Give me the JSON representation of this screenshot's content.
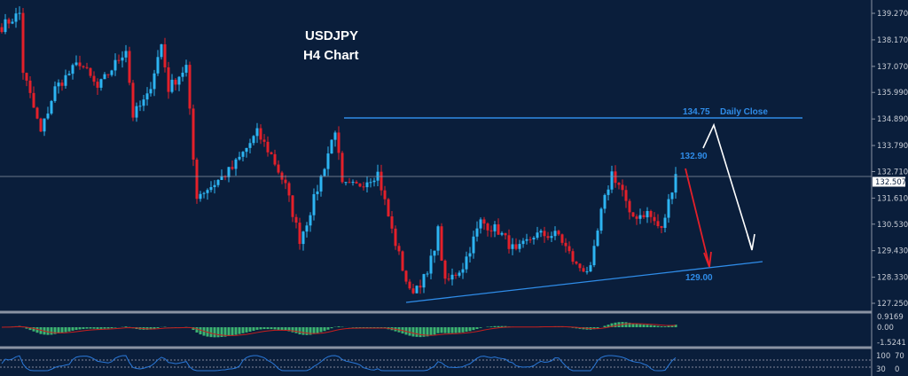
{
  "chart_data": {
    "type": "candlestick",
    "title": "USDJPY",
    "subtitle": "H4 Chart",
    "symbol": "USDJPY",
    "timeframe": "H4",
    "ylim": [
      127.25,
      139.27
    ],
    "y_ticks": [
      "139.270",
      "138.170",
      "137.070",
      "135.990",
      "134.890",
      "133.790",
      "132.710",
      "131.610",
      "130.530",
      "129.430",
      "128.330",
      "127.250"
    ],
    "current_price": "132.507",
    "price_path": [
      [
        0,
        138.72
      ],
      [
        5,
        139.27
      ],
      [
        6,
        136.88
      ],
      [
        11,
        134.31
      ],
      [
        15,
        136.15
      ],
      [
        22,
        137.25
      ],
      [
        27,
        136.15
      ],
      [
        35,
        137.8
      ],
      [
        37,
        135.04
      ],
      [
        41,
        135.78
      ],
      [
        45,
        137.98
      ],
      [
        47,
        136.15
      ],
      [
        52,
        137.06
      ],
      [
        54,
        133.2
      ],
      [
        55,
        131.73
      ],
      [
        59,
        132.1
      ],
      [
        65,
        132.84
      ],
      [
        72,
        134.31
      ],
      [
        76,
        133.39
      ],
      [
        80,
        132.1
      ],
      [
        84,
        129.9
      ],
      [
        86,
        130.63
      ],
      [
        90,
        132.47
      ],
      [
        94,
        134.49
      ],
      [
        96,
        132.1
      ],
      [
        100,
        132.1
      ],
      [
        106,
        132.65
      ],
      [
        110,
        130.26
      ],
      [
        115,
        127.69
      ],
      [
        120,
        128.42
      ],
      [
        123,
        130.26
      ],
      [
        125,
        128.06
      ],
      [
        130,
        128.79
      ],
      [
        135,
        130.63
      ],
      [
        140,
        130.26
      ],
      [
        145,
        129.34
      ],
      [
        150,
        130.08
      ],
      [
        157,
        130.08
      ],
      [
        162,
        128.79
      ],
      [
        166,
        128.61
      ],
      [
        169,
        131.0
      ],
      [
        172,
        132.65
      ],
      [
        175,
        131.92
      ],
      [
        177,
        130.82
      ],
      [
        182,
        131.0
      ],
      [
        186,
        130.26
      ],
      [
        190,
        132.65
      ]
    ],
    "annotations": {
      "resistance_level": "134.75",
      "resistance_label": "Daily Close",
      "target_high": "132.90",
      "support_level": "129.00"
    },
    "macd_pane": {
      "ticks": [
        "0.9169",
        "0.00",
        "-1.5241"
      ]
    },
    "oscillator_pane": {
      "ticks": [
        "100",
        "70",
        "30",
        "0"
      ],
      "levels": [
        70,
        30
      ]
    },
    "colors": {
      "background": "#0a1e3b",
      "bull": "#2db4f2",
      "bear": "#e3202a",
      "level": "#2f8ce8",
      "histogram": "#3cb371",
      "signal": "#c81e1e",
      "osc": "#2a78d8"
    }
  }
}
